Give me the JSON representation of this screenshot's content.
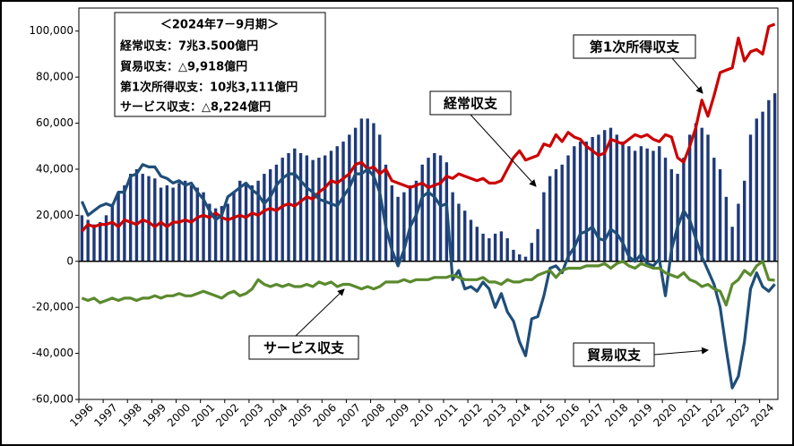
{
  "chart_data": {
    "type": "combo",
    "info": [
      "＜2024年7－9月期＞",
      "経常収支：7兆3.500億円",
      "貿易収支：△9,918億円",
      "第1次所得収支：10兆3,111億円",
      "サービス収支：△8,224億円"
    ],
    "categories": [
      "1996",
      null,
      null,
      null,
      "1997",
      null,
      null,
      null,
      "1998",
      null,
      null,
      null,
      "1999",
      null,
      null,
      null,
      "2000",
      null,
      null,
      null,
      "2001",
      null,
      null,
      null,
      "2002",
      null,
      null,
      null,
      "2003",
      null,
      null,
      null,
      "2004",
      null,
      null,
      null,
      "2005",
      null,
      null,
      null,
      "2006",
      null,
      null,
      null,
      "2007",
      null,
      null,
      null,
      "2008",
      null,
      null,
      null,
      "2009",
      null,
      null,
      null,
      "2010",
      null,
      null,
      null,
      "2011",
      null,
      null,
      null,
      "2012",
      null,
      null,
      null,
      "2013",
      null,
      null,
      null,
      "2014",
      null,
      null,
      null,
      "2015",
      null,
      null,
      null,
      "2016",
      null,
      null,
      null,
      "2017",
      null,
      null,
      null,
      "2018",
      null,
      null,
      null,
      "2019",
      null,
      null,
      null,
      "2020",
      null,
      null,
      null,
      "2021",
      null,
      null,
      null,
      "2022",
      null,
      null,
      null,
      "2023",
      null,
      null,
      null,
      "2024",
      null,
      null
    ],
    "series": [
      {
        "name": "経常収支",
        "kind": "bar",
        "color": "#1f3a7a",
        "values": [
          20000,
          18000,
          16000,
          17000,
          20000,
          25000,
          30000,
          33000,
          38000,
          40000,
          38000,
          37000,
          36000,
          32000,
          33000,
          32000,
          34000,
          35000,
          33000,
          32000,
          30000,
          25000,
          23000,
          24000,
          25000,
          30000,
          35000,
          34000,
          33000,
          35000,
          38000,
          40000,
          42000,
          45000,
          47000,
          49000,
          47000,
          46000,
          44000,
          45000,
          46000,
          48000,
          50000,
          52000,
          55000,
          58000,
          62000,
          62000,
          60000,
          55000,
          42000,
          33000,
          28000,
          30000,
          33000,
          35000,
          42000,
          45000,
          47000,
          46000,
          43000,
          30000,
          25000,
          22000,
          18000,
          15000,
          12000,
          10000,
          12000,
          13000,
          10000,
          5000,
          3000,
          2000,
          8000,
          14000,
          30000,
          37000,
          40000,
          42000,
          46000,
          50000,
          52000,
          52000,
          54000,
          55000,
          57000,
          58000,
          55000,
          52000,
          50000,
          48000,
          50000,
          49000,
          48000,
          50000,
          45000,
          40000,
          38000,
          45000,
          55000,
          60000,
          58000,
          55000,
          45000,
          40000,
          28000,
          15000,
          25000,
          35000,
          55000,
          62000,
          65000,
          70000,
          73000
        ]
      },
      {
        "name": "第1次所得収支",
        "kind": "line",
        "color": "#cc0000",
        "values": [
          13000,
          16000,
          15000,
          16000,
          16000,
          17000,
          15000,
          18000,
          17000,
          16000,
          18000,
          17000,
          15000,
          17000,
          15000,
          17000,
          17000,
          18000,
          17000,
          19000,
          20000,
          19000,
          21000,
          19000,
          18000,
          19000,
          20000,
          19000,
          21000,
          20000,
          22000,
          23000,
          22000,
          24000,
          25000,
          24000,
          26000,
          28000,
          27000,
          30000,
          32000,
          35000,
          34000,
          36000,
          38000,
          42000,
          43000,
          40000,
          41000,
          38000,
          40000,
          35000,
          34000,
          33000,
          32000,
          33000,
          34000,
          32000,
          33000,
          34000,
          37000,
          36000,
          38000,
          37000,
          36000,
          35000,
          36000,
          34000,
          34000,
          35000,
          40000,
          45000,
          48000,
          44000,
          45000,
          46000,
          51000,
          50000,
          55000,
          52000,
          56000,
          54000,
          53000,
          50000,
          48000,
          46000,
          47000,
          53000,
          52000,
          51000,
          53000,
          55000,
          54000,
          55000,
          53000,
          52000,
          55000,
          54000,
          45000,
          43000,
          50000,
          58000,
          70000,
          63000,
          72000,
          82000,
          83000,
          84000,
          97000,
          87000,
          91000,
          92000,
          90000,
          102000,
          103000
        ]
      },
      {
        "name": "貿易収支",
        "kind": "line",
        "color": "#1f4e79",
        "values": [
          26000,
          20000,
          22000,
          24000,
          25000,
          24000,
          30000,
          30000,
          37000,
          38000,
          42000,
          41000,
          41000,
          37000,
          36000,
          34000,
          35000,
          33000,
          34000,
          30000,
          27000,
          22000,
          18000,
          20000,
          28000,
          30000,
          32000,
          34000,
          31000,
          29000,
          25000,
          28000,
          33000,
          36000,
          38000,
          38000,
          35000,
          32000,
          30000,
          27000,
          26000,
          25000,
          24000,
          28000,
          32000,
          38000,
          38000,
          40000,
          37000,
          30000,
          15000,
          5000,
          -2000,
          5000,
          15000,
          20000,
          28000,
          30000,
          28000,
          24000,
          25000,
          -8000,
          -4000,
          -12000,
          -11000,
          -13000,
          -9000,
          -12000,
          -20000,
          -14000,
          -22000,
          -26000,
          -35000,
          -41000,
          -25000,
          -24000,
          -15000,
          -3000,
          -2000,
          -5000,
          2000,
          6000,
          12000,
          13000,
          15000,
          10000,
          9000,
          14000,
          12000,
          8000,
          2000,
          0,
          3000,
          -1000,
          -2000,
          1000,
          -15000,
          5000,
          15000,
          22000,
          18000,
          10000,
          2000,
          -4000,
          -10000,
          -20000,
          -38000,
          -55000,
          -50000,
          -35000,
          -12000,
          -5000,
          -11000,
          -13000,
          -9918
        ]
      },
      {
        "name": "サービス収支",
        "kind": "line",
        "color": "#5a8a2e",
        "values": [
          -16000,
          -17000,
          -16000,
          -18000,
          -17000,
          -16000,
          -17000,
          -16000,
          -16000,
          -17000,
          -16000,
          -16000,
          -15000,
          -16000,
          -15000,
          -15000,
          -14000,
          -15000,
          -15000,
          -14000,
          -13000,
          -14000,
          -15000,
          -16000,
          -14000,
          -13000,
          -15000,
          -14000,
          -12000,
          -8000,
          -10000,
          -11000,
          -10000,
          -11000,
          -10000,
          -11000,
          -11000,
          -10000,
          -11000,
          -9000,
          -10000,
          -9000,
          -11000,
          -10000,
          -10000,
          -11000,
          -12000,
          -11000,
          -12000,
          -11000,
          -9000,
          -9000,
          -9000,
          -8000,
          -9000,
          -8000,
          -8000,
          -8000,
          -7000,
          -7000,
          -7000,
          -6000,
          -7000,
          -8000,
          -8000,
          -8000,
          -7000,
          -9000,
          -9000,
          -10000,
          -8000,
          -9000,
          -9000,
          -8000,
          -8000,
          -6000,
          -5000,
          -4000,
          -7000,
          -4000,
          -3000,
          -3000,
          -3000,
          -2000,
          -2000,
          -2000,
          -1000,
          -3000,
          -1000,
          0,
          -2000,
          -3000,
          -1000,
          -2000,
          -3000,
          -3000,
          -5000,
          -6000,
          -7000,
          -5000,
          -8000,
          -9000,
          -11000,
          -10000,
          -12000,
          -13000,
          -19000,
          -10000,
          -8000,
          -4000,
          -6000,
          -2000,
          0,
          -8000,
          -8224
        ]
      }
    ],
    "ylim": [
      -60000,
      110000
    ],
    "yticks": [
      {
        "value": -60000,
        "label": "-60,000"
      },
      {
        "value": -40000,
        "label": "-40,000"
      },
      {
        "value": -20000,
        "label": "-20,000"
      },
      0,
      {
        "value": 20000,
        "label": "20,000"
      },
      {
        "value": 40000,
        "label": "40,000"
      },
      {
        "value": 60000,
        "label": "60,000"
      },
      {
        "value": 80000,
        "label": "80,000"
      },
      {
        "value": 100000,
        "label": "100,000"
      }
    ],
    "grid": false
  }
}
